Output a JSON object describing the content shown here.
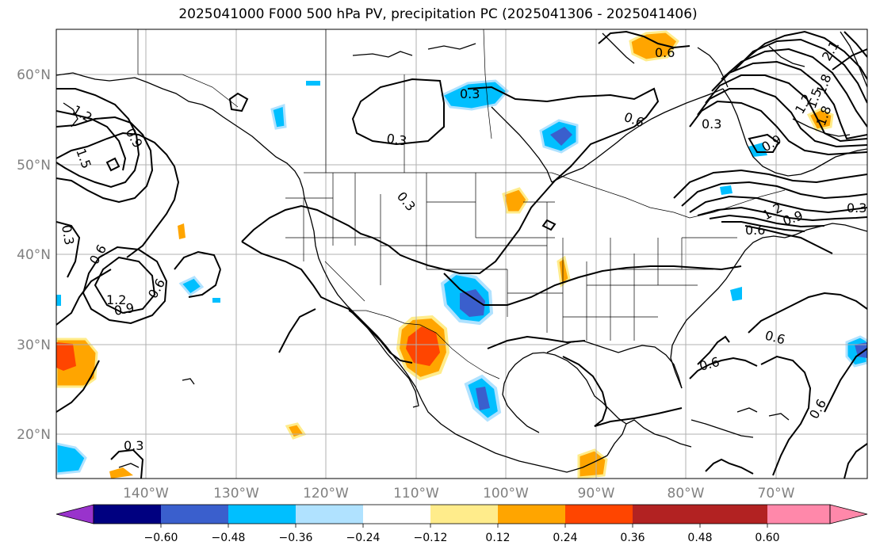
{
  "title": "2025041000 F000 500 hPa PV, precipitation PC (2025041306 - 2025041406)",
  "lat_labels": [
    "60°N",
    "50°N",
    "40°N",
    "30°N",
    "20°N"
  ],
  "lon_labels": [
    "140°W",
    "130°W",
    "120°W",
    "110°W",
    "100°W",
    "90°W",
    "80°W",
    "70°W"
  ],
  "colorbar": {
    "colors": [
      "#9933cc",
      "#000080",
      "#3a5fcd",
      "#00bfff",
      "#b0e2ff",
      "#ffffff",
      "#ffec8b",
      "#ffa500",
      "#ff4500",
      "#b22222",
      "#ff88aa"
    ],
    "tick_labels": [
      "−0.60",
      "−0.48",
      "−0.36",
      "−0.24",
      "−0.12",
      "0.12",
      "0.24",
      "0.36",
      "0.48",
      "0.60"
    ]
  },
  "contour_labels": [
    "0.6",
    "0.3",
    "0.6",
    "0.3",
    "0.3",
    "0.3",
    "1.2",
    "1.5",
    "0.9",
    "0.3",
    "0.6",
    "1.2",
    "0.9",
    "0.6",
    "0.3",
    "0.6",
    "0.6",
    "0.6",
    "1.2",
    "0.9",
    "0.6",
    "0.3",
    "2.1",
    "1.8",
    "1.5",
    "1.2",
    "0.9",
    "1.8"
  ]
}
